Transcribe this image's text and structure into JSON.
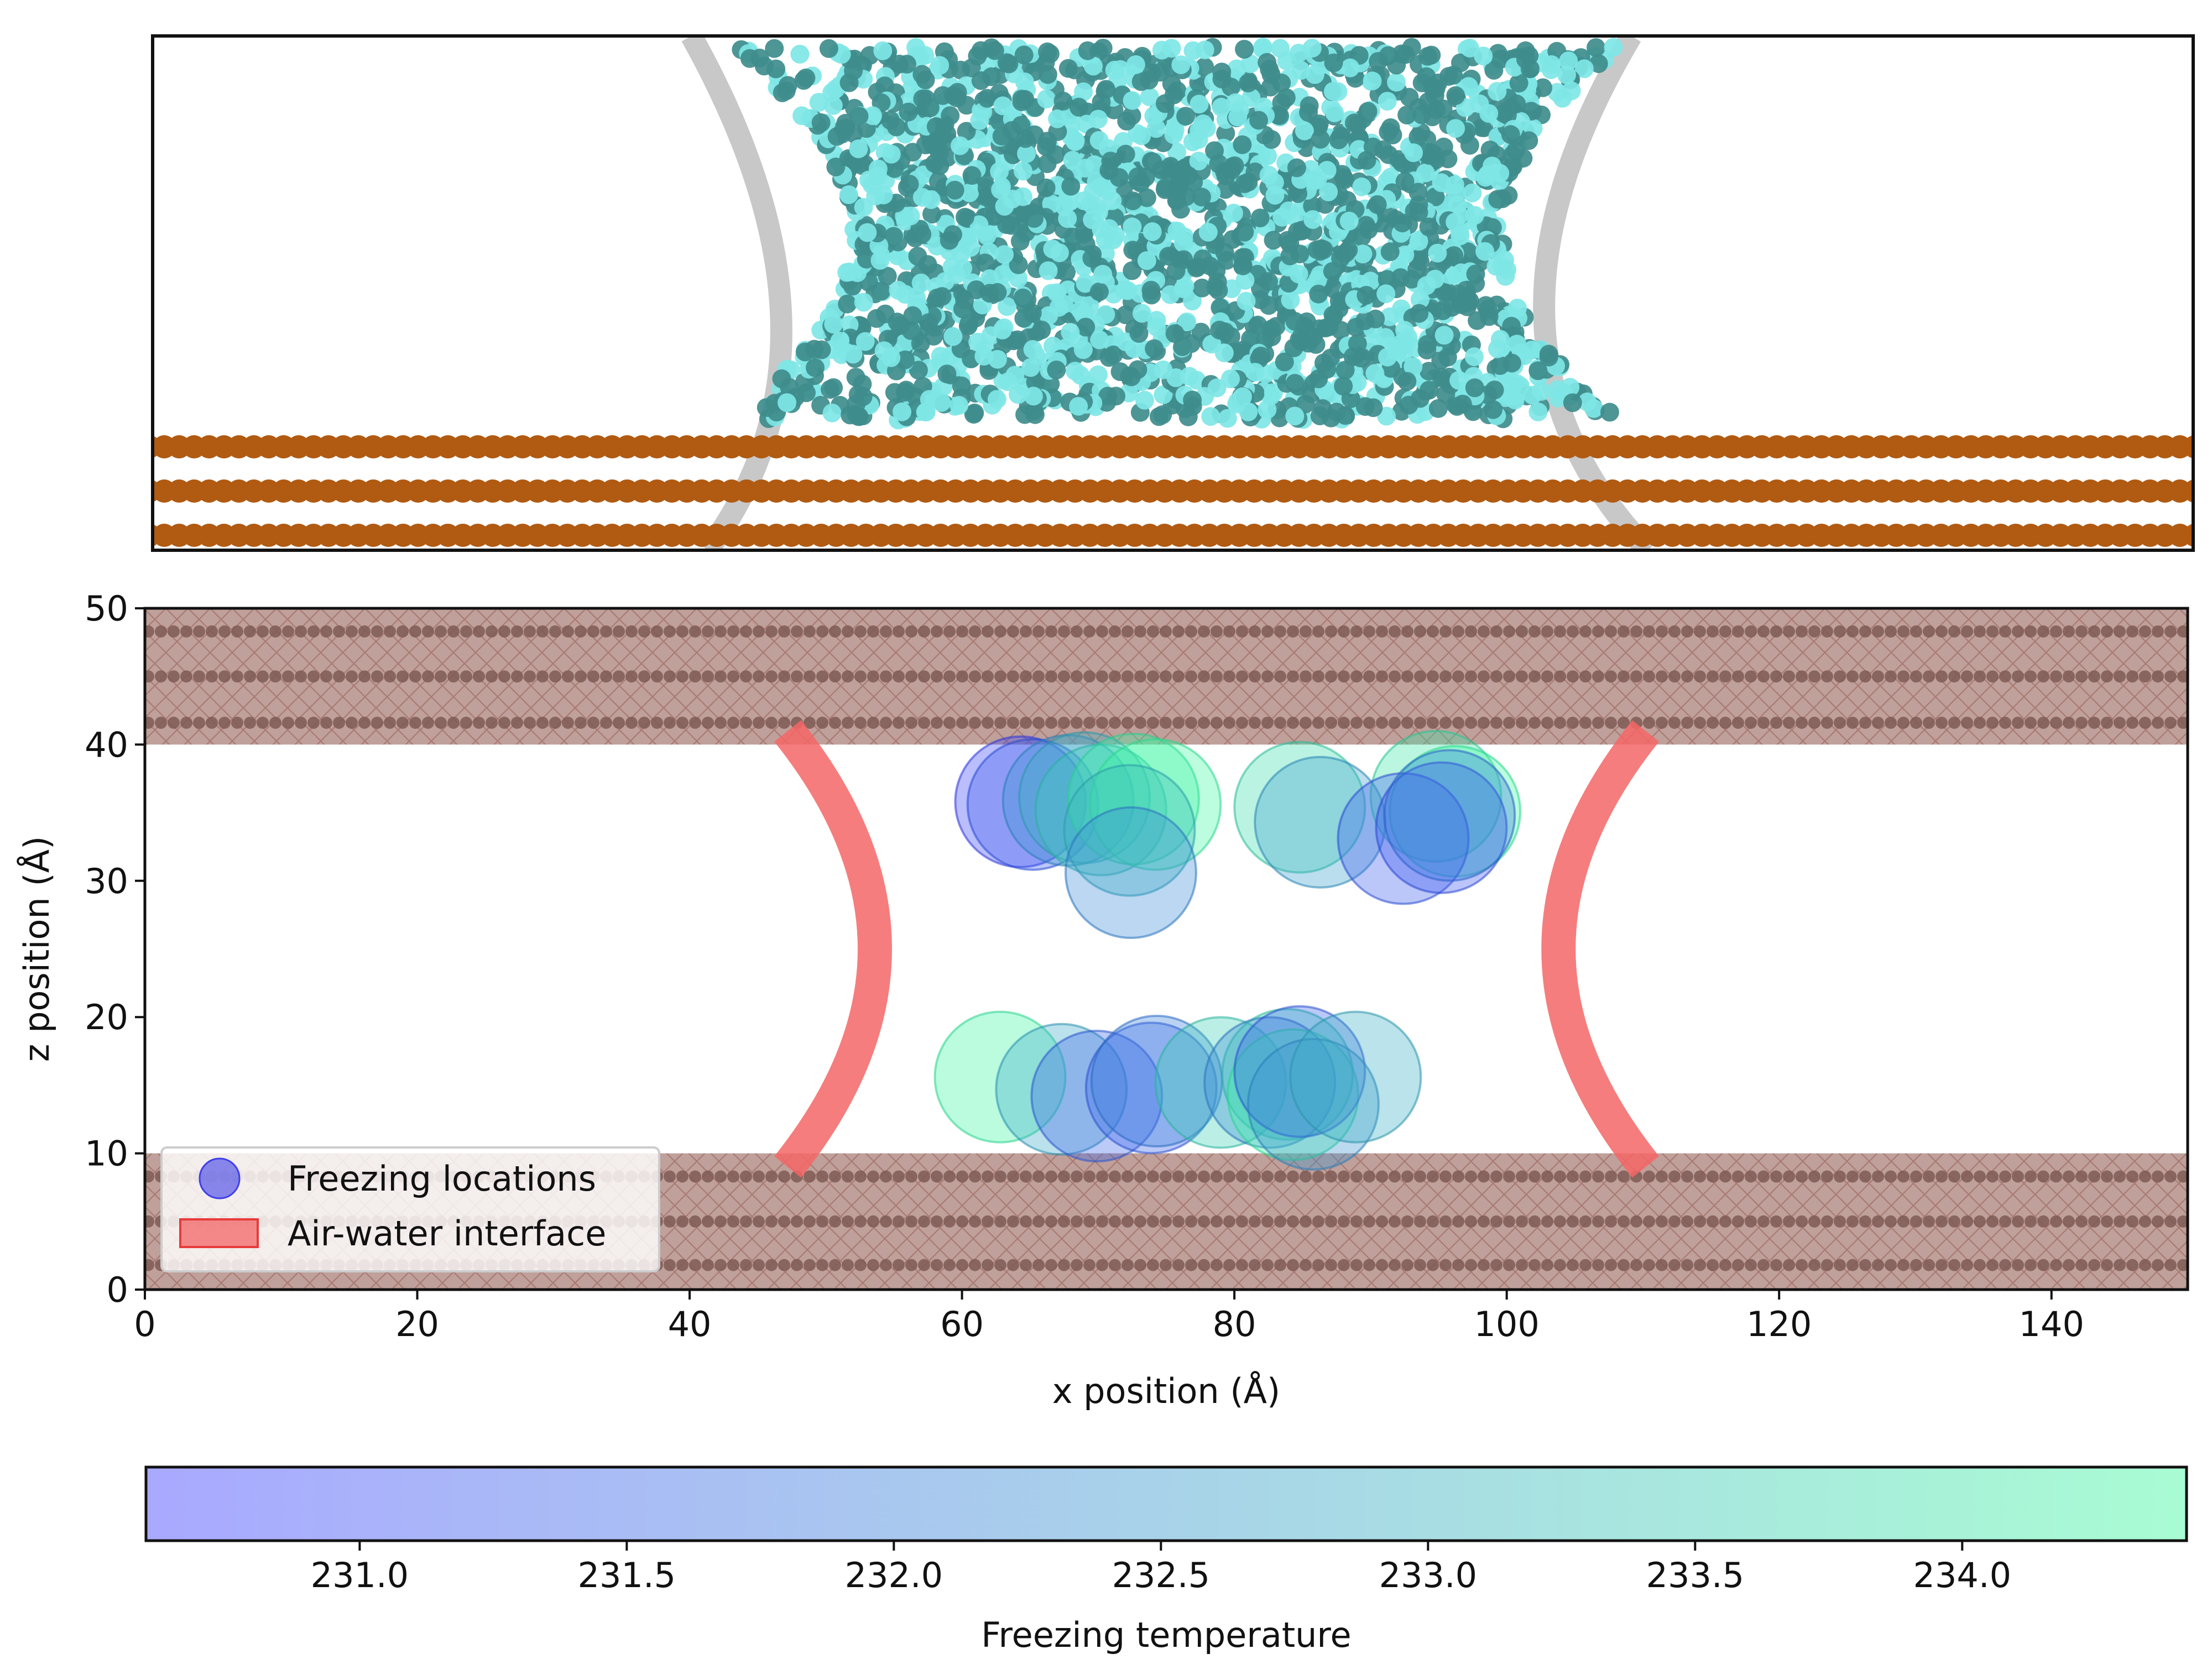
{
  "chart_data": [
    {
      "type": "image",
      "panel": "molecular-snapshot",
      "colors": {
        "water_dark": "#3f8c8c",
        "water_light": "#7fe6e6",
        "substrate": "#b05a12",
        "interface_shadow": "#9a9a9a"
      },
      "substrate_layers": 3
    },
    {
      "type": "scatter",
      "panel": "freezing-map",
      "xlabel": "x position (Å)",
      "ylabel": "z position (Å)",
      "xlim": [
        0,
        150
      ],
      "ylim": [
        0,
        50
      ],
      "xticks": [
        0,
        20,
        40,
        60,
        80,
        100,
        120,
        140
      ],
      "yticks": [
        0,
        10,
        20,
        30,
        40,
        50
      ],
      "grid": false,
      "substrate_bands": [
        {
          "z_min": 0,
          "z_max": 10,
          "atom_rows_z": [
            1.8,
            5.0,
            8.3
          ]
        },
        {
          "z_min": 40,
          "z_max": 50,
          "atom_rows_z": [
            41.6,
            45.0,
            48.3
          ]
        }
      ],
      "interfaces": [
        {
          "side": "left",
          "z_range": [
            9,
            41
          ],
          "x_at_ends": 47.2,
          "x_at_middle": 53.6
        },
        {
          "side": "right",
          "z_range": [
            9,
            41
          ],
          "x_at_ends": 110.2,
          "x_at_middle": 103.8
        }
      ],
      "points": [
        {
          "x": 64.3,
          "z": 35.8,
          "T": 230.8
        },
        {
          "x": 65.2,
          "z": 35.6,
          "T": 231.3
        },
        {
          "x": 67.8,
          "z": 35.9,
          "T": 232.4
        },
        {
          "x": 69.0,
          "z": 36.1,
          "T": 233.0
        },
        {
          "x": 70.2,
          "z": 35.2,
          "T": 233.5
        },
        {
          "x": 72.6,
          "z": 36.0,
          "T": 234.2
        },
        {
          "x": 74.2,
          "z": 35.6,
          "T": 234.4
        },
        {
          "x": 72.3,
          "z": 33.7,
          "T": 233.1
        },
        {
          "x": 72.4,
          "z": 30.6,
          "T": 232.2
        },
        {
          "x": 84.8,
          "z": 35.4,
          "T": 233.8
        },
        {
          "x": 86.3,
          "z": 34.3,
          "T": 232.6
        },
        {
          "x": 94.8,
          "z": 36.2,
          "T": 234.0
        },
        {
          "x": 96.2,
          "z": 35.1,
          "T": 234.4
        },
        {
          "x": 92.4,
          "z": 33.1,
          "T": 231.3
        },
        {
          "x": 95.2,
          "z": 33.9,
          "T": 231.2
        },
        {
          "x": 95.8,
          "z": 34.8,
          "T": 231.8
        },
        {
          "x": 62.8,
          "z": 15.6,
          "T": 234.3
        },
        {
          "x": 67.3,
          "z": 14.7,
          "T": 232.8
        },
        {
          "x": 69.9,
          "z": 14.2,
          "T": 231.5
        },
        {
          "x": 73.9,
          "z": 14.8,
          "T": 231.4
        },
        {
          "x": 74.3,
          "z": 15.3,
          "T": 232.0
        },
        {
          "x": 79.0,
          "z": 15.2,
          "T": 233.6
        },
        {
          "x": 83.9,
          "z": 15.8,
          "T": 233.8
        },
        {
          "x": 82.6,
          "z": 15.2,
          "T": 232.2
        },
        {
          "x": 84.3,
          "z": 14.3,
          "T": 234.3
        },
        {
          "x": 84.8,
          "z": 16.0,
          "T": 231.4
        },
        {
          "x": 85.8,
          "z": 13.6,
          "T": 232.4
        },
        {
          "x": 88.9,
          "z": 15.6,
          "T": 232.9
        }
      ],
      "legend": {
        "placement": "lower-left",
        "entries": [
          {
            "label": "Freezing locations",
            "marker": "circle",
            "color": "#3f3fe8"
          },
          {
            "label": "Air-water interface",
            "marker": "patch",
            "color": "#f46666"
          }
        ]
      },
      "colors": {
        "band_fill": "#bfa09a",
        "band_hatch": "#a06a64",
        "atom": "#7f5a55",
        "interface": "#f46666"
      }
    },
    {
      "type": "colorbar",
      "panel": "colorbar",
      "label": "Freezing temperature",
      "range": [
        230.6,
        234.42
      ],
      "ticks": [
        "231.0",
        "231.5",
        "232.0",
        "232.5",
        "233.0",
        "233.5",
        "234.0"
      ],
      "tick_values": [
        231.0,
        231.5,
        232.0,
        232.5,
        233.0,
        233.5,
        234.0
      ],
      "color_low": "#a9a9ff",
      "color_high": "#a8fcd3"
    }
  ]
}
